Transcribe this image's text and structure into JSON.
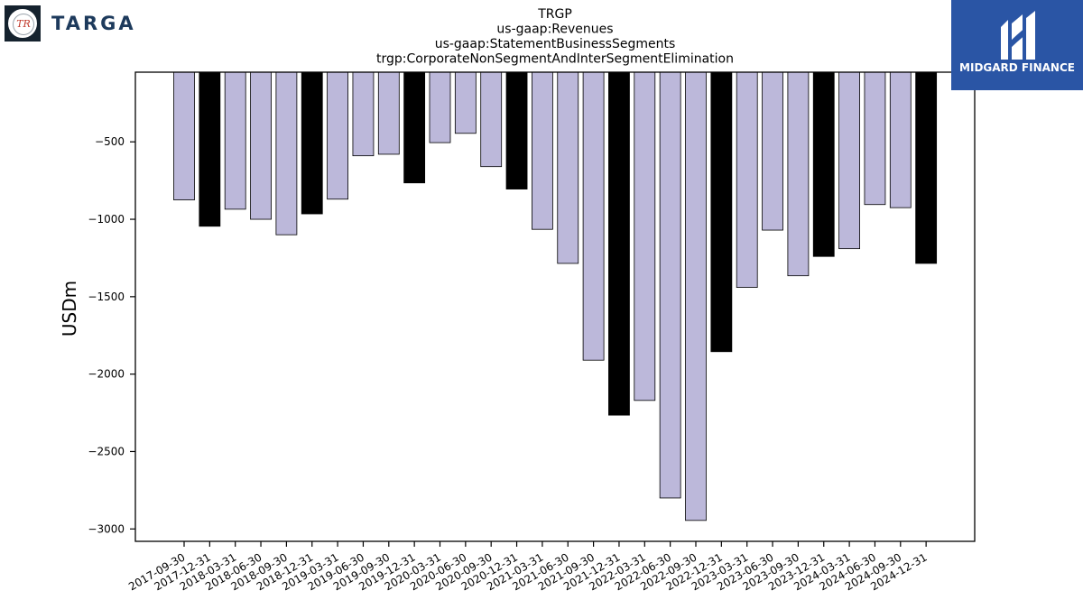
{
  "company_logo": {
    "badge_text": "TR",
    "wordmark": "TARGA"
  },
  "midgard_logo": {
    "text": "MIDGARD FINANCE"
  },
  "colors": {
    "bar_light": "#bcb8da",
    "bar_dark": "#000000",
    "edge": "#000000"
  },
  "chart_data": {
    "type": "bar",
    "title_lines": [
      "TRGP",
      "us-gaap:Revenues",
      "us-gaap:StatementBusinessSegments",
      "trgp:CorporateNonSegmentAndInterSegmentElimination"
    ],
    "ylabel": "USDm",
    "xlabel": "",
    "ylim": [
      -3080,
      -50
    ],
    "yticks": [
      -500,
      -1000,
      -1500,
      -2000,
      -2500,
      -3000
    ],
    "ytick_labels": [
      "−500",
      "−1000",
      "−1500",
      "−2000",
      "−2500",
      "−3000"
    ],
    "categories": [
      "2017-09-30",
      "2017-12-31",
      "2018-03-31",
      "2018-06-30",
      "2018-09-30",
      "2018-12-31",
      "2019-03-31",
      "2019-06-30",
      "2019-09-30",
      "2019-12-31",
      "2020-03-31",
      "2020-06-30",
      "2020-09-30",
      "2020-12-31",
      "2021-03-31",
      "2021-06-30",
      "2021-09-30",
      "2021-12-31",
      "2022-03-31",
      "2022-06-30",
      "2022-09-30",
      "2022-12-31",
      "2023-03-31",
      "2023-06-30",
      "2023-09-30",
      "2023-12-31",
      "2024-03-31",
      "2024-06-30",
      "2024-09-30",
      "2024-12-31"
    ],
    "values": [
      -875,
      -1045,
      -935,
      -1000,
      -1100,
      -965,
      -870,
      -590,
      -580,
      -765,
      -505,
      -445,
      -660,
      -805,
      -1065,
      -1285,
      -1910,
      -2265,
      -2170,
      -2800,
      -2945,
      -1855,
      -1440,
      -1070,
      -1365,
      -1240,
      -1190,
      -905,
      -925,
      -1285
    ],
    "highlight": [
      false,
      true,
      false,
      false,
      false,
      true,
      false,
      false,
      false,
      true,
      false,
      false,
      false,
      true,
      false,
      false,
      false,
      true,
      false,
      false,
      false,
      true,
      false,
      false,
      false,
      true,
      false,
      false,
      false,
      true
    ],
    "grid": false,
    "legend": "none"
  }
}
